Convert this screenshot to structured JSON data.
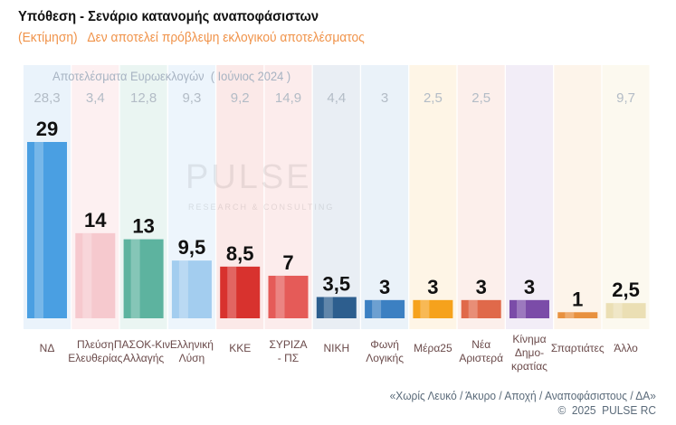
{
  "title": "Υπόθεση - Σενάριο κατανομής αναποφάσιστων",
  "subtitle": "(Εκτίμηση)   Δεν αποτελεί πρόβλεψη εκλογικού αποτελέσματος",
  "previous_title": "Αποτελέσματα Ευρωεκλογών  ( Ιούνιος 2024 )",
  "watermark": "PULSE",
  "watermark_sub": "RESEARCH & CONSULTING",
  "footnote": "«Χωρίς Λευκό / Άκυρο / Αποχή / Αναποφάσιστους / ΔΑ»",
  "copyright": "©  2025  PULSE RC",
  "chart_data": {
    "type": "bar",
    "title": "Υπόθεση - Σενάριο κατανομής αναποφάσιστων",
    "categories": [
      "ΝΔ",
      "Πλεύση Ελευθερίας",
      "ΠΑΣΟΚ-Κιν. Αλλαγής",
      "Ελληνική Λύση",
      "ΚΚΕ",
      "ΣΥΡΙΖΑ - ΠΣ",
      "ΝΙΚΗ",
      "Φωνή Λογικής",
      "Μέρα25",
      "Νέα Αριστερά",
      "Κίνημα Δημο-κρατίας",
      "Σπαρτιάτες",
      "Άλλο"
    ],
    "values": [
      "29",
      "14",
      "13",
      "9,5",
      "8,5",
      "7",
      "3,5",
      "3",
      "3",
      "3",
      "3",
      "1",
      "2,5"
    ],
    "previous": [
      "28,3",
      "3,4",
      "12,8",
      "9,3",
      "9,2",
      "14,9",
      "4,4",
      "3",
      "2,5",
      "2,5",
      "",
      "",
      "9,7"
    ],
    "colors": [
      "#4a9fe2",
      "#f6c9ce",
      "#5db39f",
      "#a3cdef",
      "#d8322e",
      "#e55b58",
      "#2d5e8e",
      "#3c80c2",
      "#f6a21c",
      "#e0694a",
      "#7b4ca8",
      "#e8913f",
      "#ebdfb4"
    ],
    "tints": [
      "#eaf3fb",
      "#fdf0f1",
      "#eaf5f2",
      "#edf5fc",
      "#fbe9e8",
      "#fcecec",
      "#e9eef4",
      "#eaf2f9",
      "#fef5e6",
      "#fcefeb",
      "#f2edf7",
      "#fdf4ea",
      "#fcf9ef"
    ],
    "ylim": [
      0,
      30
    ]
  }
}
